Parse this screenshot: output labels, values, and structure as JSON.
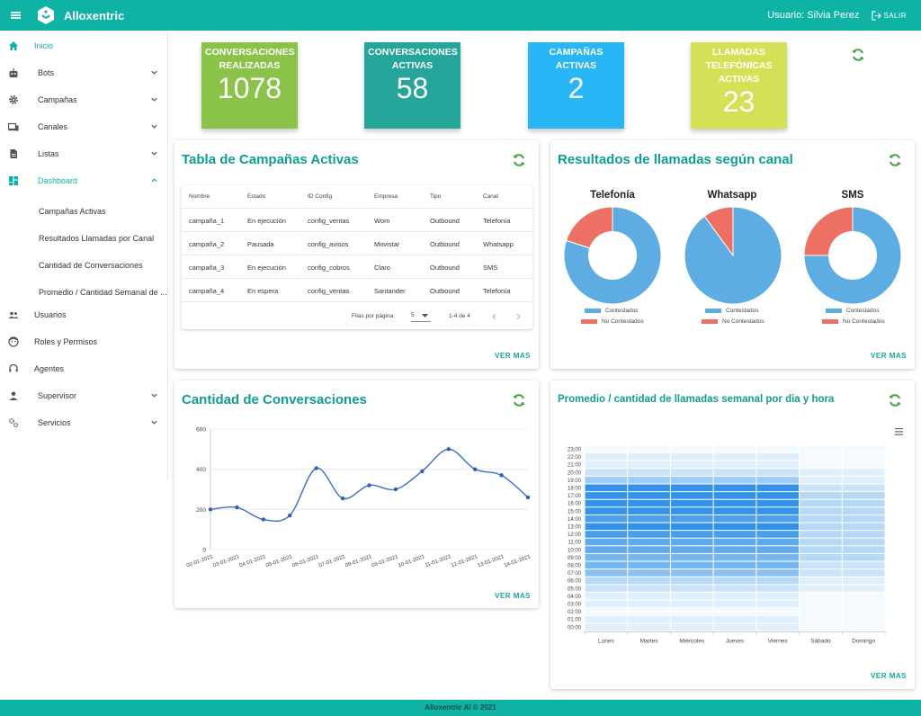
{
  "header": {
    "title": "Alloxentric",
    "user": "Usuario: Silvia Perez",
    "logout": "SALIR"
  },
  "sidebar": {
    "items": [
      {
        "label": "Inicio",
        "icon": "home-icon"
      },
      {
        "label": "Bots",
        "icon": "robot-icon"
      },
      {
        "label": "Campañas",
        "icon": "gear-icon"
      },
      {
        "label": "Canales",
        "icon": "devices-icon"
      },
      {
        "label": "Listas",
        "icon": "document-icon"
      },
      {
        "label": "Dashboard",
        "icon": "dashboard-icon"
      },
      {
        "label": "Usuarios",
        "icon": "users-icon"
      },
      {
        "label": "Roles y Permisos",
        "icon": "face-icon"
      },
      {
        "label": "Agentes",
        "icon": "headset-icon"
      },
      {
        "label": "Supervisor",
        "icon": "person-icon"
      },
      {
        "label": "Servicios",
        "icon": "settings-icon"
      }
    ],
    "dashboard_sub": [
      "Campañas Activas",
      "Resultados Llamadas por Canal",
      "Cantidad de Conversaciones",
      "Promedio / Cantidad Semanal de ..."
    ]
  },
  "stats": [
    {
      "title": "CONVERSACIONES REALIZADAS",
      "value": "1078",
      "color": "#8bc34a"
    },
    {
      "title": "CONVERSACIONES ACTIVAS",
      "value": "58",
      "color": "#26a69a"
    },
    {
      "title": "CAMPAÑAS ACTIVAS",
      "value": "2",
      "color": "#29b6f6"
    },
    {
      "title": "LLAMADAS TELEFÓNICAS ACTIVAS",
      "value": "23",
      "color": "#d4e157"
    }
  ],
  "campaigns": {
    "title": "Tabla de Campañas Activas",
    "columns": [
      "Nombre",
      "Estado",
      "ID Config",
      "Empresa",
      "Tipo",
      "Canal"
    ],
    "rows": [
      [
        "campaña_1",
        "En ejecución",
        "config_ventas",
        "Wom",
        "Outbound",
        "Telefonía"
      ],
      [
        "campaña_2",
        "Pausada",
        "config_avisos",
        "Movistar",
        "Outbound",
        "Whatsapp"
      ],
      [
        "campaña_3",
        "En ejecución",
        "config_cobros",
        "Claro",
        "Outbound",
        "SMS"
      ],
      [
        "campaña_4",
        "En espera",
        "config_ventas",
        "Santander",
        "Outbound",
        "Telefonía"
      ]
    ],
    "rows_per_page_label": "Filas por página:",
    "rows_per_page": "5",
    "range": "1-4 de 4",
    "more": "VER MAS"
  },
  "results": {
    "title": "Resultados de llamadas según canal",
    "legend": [
      "Contestados",
      "No Contestados"
    ],
    "colors": {
      "answered": "#5dade2",
      "not_answered": "#ec7063"
    },
    "more": "VER MAS"
  },
  "conversations": {
    "title": "Cantidad de Conversaciones",
    "more": "VER MAS"
  },
  "weekly": {
    "title": "Promedio / cantidad de llamadas semanal por dia y hora",
    "more": "VER MAS"
  },
  "chart_data": [
    {
      "type": "pie",
      "title": "Telefonía",
      "donut": true,
      "labels": [
        "Contestados",
        "No Contestados"
      ],
      "values": [
        80,
        20
      ]
    },
    {
      "type": "pie",
      "title": "Whatsapp",
      "donut": false,
      "labels": [
        "Contestados",
        "No Contestados"
      ],
      "values": [
        90,
        10
      ]
    },
    {
      "type": "pie",
      "title": "SMS",
      "donut": true,
      "labels": [
        "Contestados",
        "No Contestados"
      ],
      "values": [
        75,
        25
      ]
    },
    {
      "type": "line",
      "title": "Cantidad de Conversaciones",
      "x": [
        "02-01-2021",
        "03-01-2021",
        "04-01-2021",
        "05-01-2021",
        "06-01-2021",
        "07-01-2021",
        "08-01-2021",
        "09-01-2021",
        "10-01-2021",
        "11-01-2021",
        "12-01-2021",
        "13-01-2021",
        "14-01-2021"
      ],
      "y": [
        200,
        210,
        150,
        170,
        405,
        255,
        320,
        300,
        390,
        500,
        400,
        370,
        260
      ],
      "ylim": [
        0,
        600
      ],
      "yticks": [
        0,
        200,
        400,
        600
      ],
      "grid": true
    },
    {
      "type": "heatmap",
      "title": "Promedio / cantidad de llamadas semanal por dia y hora",
      "x": [
        "Lunes",
        "Martes",
        "Miércoles",
        "Jueves",
        "Viernes",
        "Sábado",
        "Domingo"
      ],
      "y": [
        "00:00",
        "01:00",
        "02:00",
        "03:00",
        "04:00",
        "05:00",
        "06:00",
        "07:00",
        "08:00",
        "09:00",
        "10:00",
        "11:00",
        "12:00",
        "13:00",
        "14:00",
        "15:00",
        "16:00",
        "17:00",
        "18:00",
        "19:00",
        "20:00",
        "21:00",
        "22:00",
        "23:00"
      ],
      "values_by_day": [
        [
          1,
          1,
          0,
          1,
          1,
          2,
          3,
          5,
          6,
          6,
          7,
          7,
          8,
          9,
          8,
          9,
          9,
          9,
          9,
          4,
          2,
          1,
          1,
          0
        ],
        [
          1,
          1,
          0,
          1,
          1,
          2,
          3,
          5,
          6,
          6,
          7,
          7,
          8,
          9,
          8,
          9,
          9,
          9,
          9,
          4,
          2,
          1,
          1,
          0
        ],
        [
          1,
          1,
          0,
          1,
          1,
          2,
          3,
          5,
          6,
          6,
          7,
          7,
          8,
          9,
          8,
          9,
          9,
          9,
          9,
          4,
          2,
          1,
          1,
          0
        ],
        [
          1,
          1,
          0,
          1,
          1,
          2,
          3,
          5,
          6,
          6,
          7,
          7,
          8,
          9,
          8,
          9,
          9,
          9,
          9,
          4,
          2,
          1,
          1,
          0
        ],
        [
          1,
          1,
          0,
          1,
          1,
          2,
          3,
          5,
          6,
          6,
          7,
          7,
          8,
          9,
          8,
          9,
          9,
          9,
          9,
          4,
          2,
          1,
          1,
          0
        ],
        [
          0,
          0,
          0,
          0,
          0,
          1,
          1,
          2,
          2,
          3,
          3,
          3,
          3,
          3,
          3,
          3,
          3,
          3,
          2,
          1,
          1,
          0,
          0,
          0
        ],
        [
          0,
          0,
          0,
          0,
          0,
          1,
          1,
          2,
          2,
          3,
          3,
          3,
          3,
          3,
          3,
          3,
          3,
          3,
          2,
          1,
          1,
          0,
          0,
          0
        ]
      ],
      "scale_max": 10
    }
  ]
}
